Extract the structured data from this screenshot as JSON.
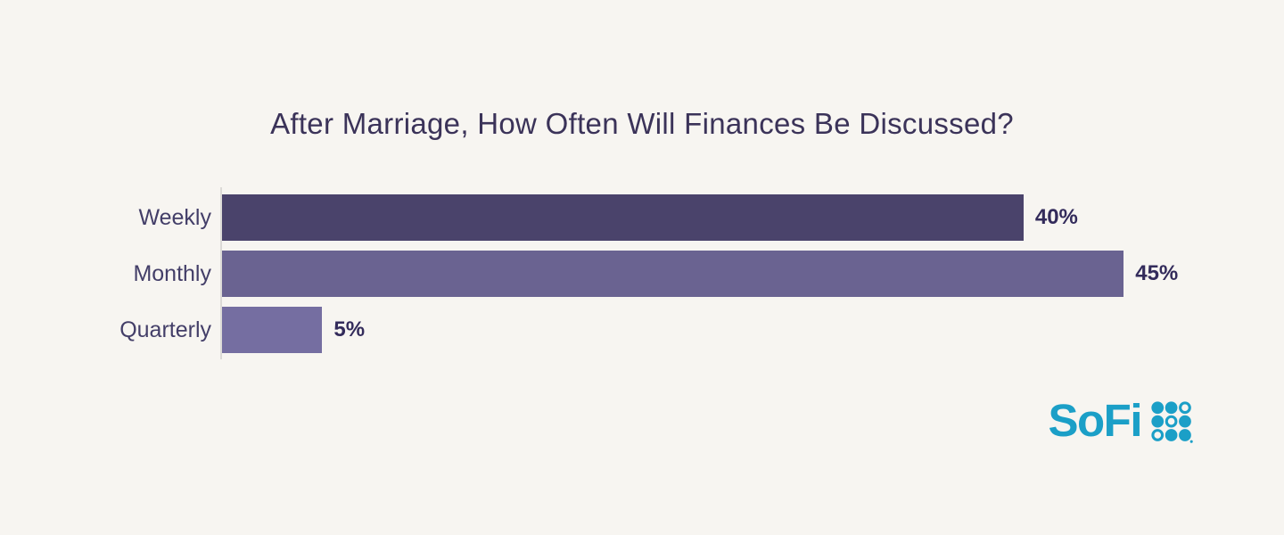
{
  "chart_data": {
    "type": "bar",
    "orientation": "horizontal",
    "title": "After Marriage, How Often Will Finances Be Discussed?",
    "categories": [
      "Weekly",
      "Monthly",
      "Quarterly"
    ],
    "values": [
      40,
      45,
      5
    ],
    "value_labels": [
      "40%",
      "45%",
      "5%"
    ],
    "xlabel": "",
    "ylabel": "",
    "xlim": [
      0,
      53
    ],
    "grid": false,
    "legend": false,
    "bar_colors": [
      "#4A436B",
      "#6A6391",
      "#756EA1"
    ]
  },
  "branding": {
    "logo_text": "SoFi",
    "dot_grid": [
      [
        "filled",
        "filled",
        "outline"
      ],
      [
        "filled",
        "outline",
        "filled"
      ],
      [
        "outline",
        "filled",
        "filled"
      ]
    ]
  },
  "colors": {
    "background": "#F7F5F1",
    "title": "#3B3359",
    "category-label": "#433E68",
    "value-label": "#332B5B",
    "axis": "#DCDAD7",
    "logo": "#1B9FC7"
  }
}
